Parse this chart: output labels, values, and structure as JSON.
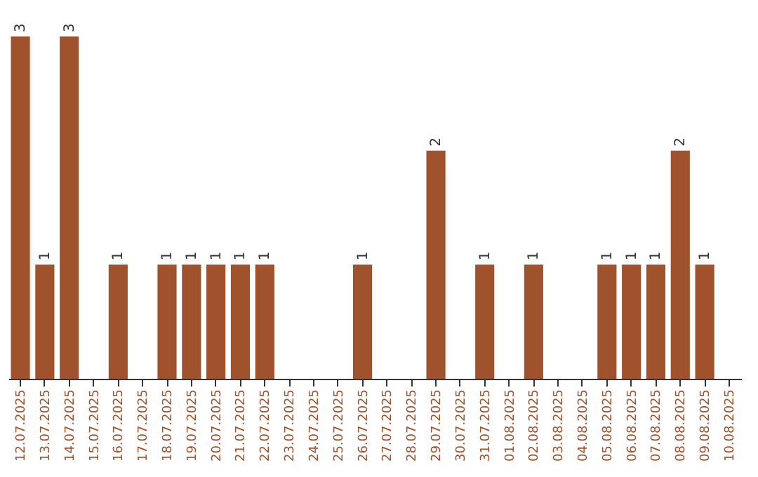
{
  "chart_data": {
    "type": "bar",
    "categories": [
      "12.07.2025",
      "13.07.2025",
      "14.07.2025",
      "15.07.2025",
      "16.07.2025",
      "17.07.2025",
      "18.07.2025",
      "19.07.2025",
      "20.07.2025",
      "21.07.2025",
      "22.07.2025",
      "23.07.2025",
      "24.07.2025",
      "25.07.2025",
      "26.07.2025",
      "27.07.2025",
      "28.07.2025",
      "29.07.2025",
      "30.07.2025",
      "31.07.2025",
      "01.08.2025",
      "02.08.2025",
      "03.08.2025",
      "04.08.2025",
      "05.08.2025",
      "06.08.2025",
      "07.08.2025",
      "08.08.2025",
      "09.08.2025",
      "10.08.2025"
    ],
    "values": [
      3,
      1,
      3,
      0,
      1,
      0,
      1,
      1,
      1,
      1,
      1,
      0,
      0,
      0,
      1,
      0,
      0,
      2,
      0,
      1,
      0,
      1,
      0,
      0,
      1,
      1,
      1,
      2,
      1,
      0
    ],
    "value_labels": [
      "3",
      "1",
      "3",
      null,
      "1",
      null,
      "1",
      "1",
      "1",
      "1",
      "1",
      null,
      null,
      null,
      "1",
      null,
      null,
      "2",
      null,
      "1",
      null,
      "1",
      null,
      null,
      "1",
      "1",
      "1",
      "2",
      "1",
      null
    ],
    "color": "#a0522d",
    "grid": false
  }
}
